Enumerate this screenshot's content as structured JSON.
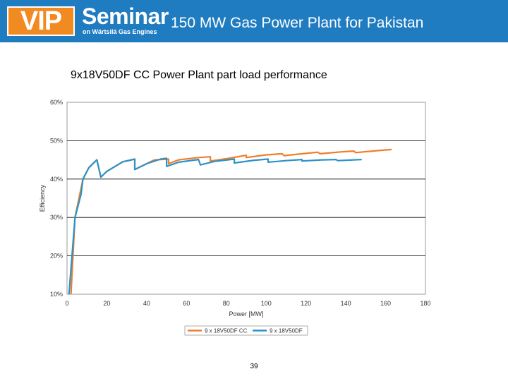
{
  "header": {
    "logo": "VIP",
    "brand": "Seminar",
    "brand_sub": "on Wärtsilä Gas Engines",
    "title": "150 MW Gas Power Plant for Pakistan"
  },
  "colors": {
    "header_bg": "#1f7cc1",
    "logo_bg": "#f28a22",
    "series_cc": "#f07d2a",
    "series_df": "#2a93c9"
  },
  "chart_data": {
    "type": "line",
    "title": "9x18V50DF CC Power Plant part load performance",
    "xlabel": "Power [MW]",
    "ylabel": "Efficiency",
    "xlim": [
      0,
      180
    ],
    "ylim": [
      0.1,
      0.6
    ],
    "x_ticks": [
      "0",
      "20",
      "40",
      "60",
      "80",
      "100",
      "120",
      "140",
      "160",
      "180"
    ],
    "y_ticks": [
      "10%",
      "20%",
      "30%",
      "40%",
      "50%",
      "60%"
    ],
    "grid": "horizontal",
    "legend_position": "bottom",
    "series": [
      {
        "name": "9 x 18V50DF CC",
        "color": "#f07d2a",
        "points": [
          [
            2,
            0.1
          ],
          [
            4,
            0.3
          ],
          [
            8,
            0.4
          ],
          [
            11,
            0.43
          ],
          [
            15,
            0.45
          ],
          [
            17,
            0.405
          ],
          [
            20,
            0.42
          ],
          [
            28,
            0.445
          ],
          [
            34,
            0.452
          ],
          [
            34,
            0.425
          ],
          [
            40,
            0.44
          ],
          [
            43,
            0.448
          ],
          [
            44,
            0.45
          ],
          [
            51,
            0.452
          ],
          [
            51,
            0.44
          ],
          [
            56,
            0.45
          ],
          [
            66,
            0.456
          ],
          [
            72,
            0.458
          ],
          [
            72,
            0.447
          ],
          [
            80,
            0.453
          ],
          [
            90,
            0.462
          ],
          [
            90,
            0.456
          ],
          [
            100,
            0.463
          ],
          [
            108,
            0.466
          ],
          [
            109,
            0.461
          ],
          [
            120,
            0.467
          ],
          [
            126,
            0.47
          ],
          [
            127,
            0.466
          ],
          [
            138,
            0.471
          ],
          [
            144,
            0.473
          ],
          [
            145,
            0.469
          ],
          [
            156,
            0.474
          ],
          [
            163,
            0.477
          ]
        ]
      },
      {
        "name": "9 x 18V50DF",
        "color": "#2a93c9",
        "points": [
          [
            1,
            0.1
          ],
          [
            4,
            0.3
          ],
          [
            7,
            0.36
          ],
          [
            8,
            0.4
          ],
          [
            11,
            0.43
          ],
          [
            15,
            0.45
          ],
          [
            17,
            0.405
          ],
          [
            20,
            0.42
          ],
          [
            28,
            0.445
          ],
          [
            34,
            0.452
          ],
          [
            34,
            0.425
          ],
          [
            40,
            0.44
          ],
          [
            47,
            0.452
          ],
          [
            50,
            0.454
          ],
          [
            50,
            0.433
          ],
          [
            56,
            0.444
          ],
          [
            66,
            0.451
          ],
          [
            67,
            0.437
          ],
          [
            74,
            0.446
          ],
          [
            84,
            0.452
          ],
          [
            84,
            0.442
          ],
          [
            94,
            0.449
          ],
          [
            101,
            0.452
          ],
          [
            101,
            0.444
          ],
          [
            110,
            0.448
          ],
          [
            118,
            0.451
          ],
          [
            118,
            0.447
          ],
          [
            128,
            0.45
          ],
          [
            135,
            0.451
          ],
          [
            136,
            0.448
          ],
          [
            148,
            0.451
          ]
        ]
      }
    ]
  },
  "page_number": "39"
}
